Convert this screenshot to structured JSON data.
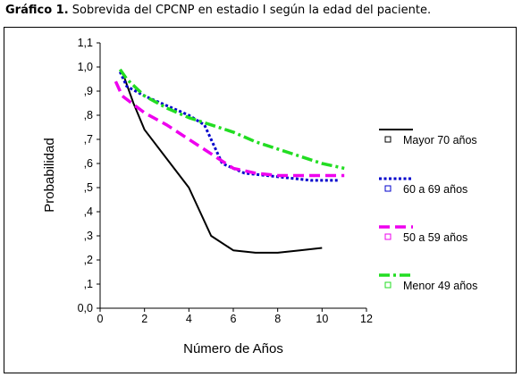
{
  "caption": {
    "label": "Gráfico 1.",
    "text": "Sobrevida del CPCNP en estadio I según la edad del paciente."
  },
  "chart_data": {
    "type": "line",
    "xlabel": "Número de Años",
    "ylabel": "Probabilidad",
    "xlim": [
      0,
      12
    ],
    "ylim": [
      0,
      1.1
    ],
    "xticks": [
      "0",
      "2",
      "4",
      "6",
      "8",
      "10",
      "12"
    ],
    "xtick_values": [
      0,
      2,
      4,
      6,
      8,
      10,
      12
    ],
    "yticks": [
      "0,0",
      ",1",
      ",2",
      ",3",
      ",4",
      ",5",
      ",6",
      ",7",
      ",8",
      ",9",
      "1,0",
      "1,1"
    ],
    "ytick_values": [
      0,
      0.1,
      0.2,
      0.3,
      0.4,
      0.5,
      0.6,
      0.7,
      0.8,
      0.9,
      1.0,
      1.1
    ],
    "grid": false,
    "legend": "right",
    "series": [
      {
        "name": "Mayor 70 años",
        "color": "#000000",
        "dash": "solid",
        "x": [
          1.0,
          1.5,
          2.0,
          3.0,
          4.0,
          5.0,
          6.0,
          7.0,
          8.0,
          9.0,
          10.0
        ],
        "y": [
          0.98,
          0.85,
          0.74,
          0.62,
          0.5,
          0.3,
          0.24,
          0.23,
          0.23,
          0.24,
          0.25
        ]
      },
      {
        "name": "60 a 69 años",
        "color": "#0000cc",
        "dash": "dotted",
        "x": [
          0.9,
          1.2,
          2.0,
          3.0,
          4.0,
          4.7,
          5.5,
          6.5,
          7.5,
          8.5,
          9.5,
          10.7
        ],
        "y": [
          0.98,
          0.92,
          0.88,
          0.84,
          0.8,
          0.76,
          0.6,
          0.56,
          0.55,
          0.54,
          0.53,
          0.53
        ]
      },
      {
        "name": "50 a 59 años",
        "color": "#ee00ee",
        "dash": "dashed",
        "x": [
          0.7,
          1.0,
          2.0,
          3.0,
          4.0,
          5.0,
          6.0,
          7.0,
          8.0,
          9.0,
          10.0,
          11.0
        ],
        "y": [
          0.94,
          0.88,
          0.81,
          0.76,
          0.7,
          0.64,
          0.58,
          0.56,
          0.55,
          0.55,
          0.55,
          0.55
        ]
      },
      {
        "name": "Menor 49 años",
        "color": "#22dd22",
        "dash": "dashdot",
        "x": [
          0.9,
          1.2,
          2.0,
          3.0,
          4.0,
          5.0,
          6.0,
          7.0,
          8.0,
          9.0,
          10.0,
          11.0
        ],
        "y": [
          0.99,
          0.95,
          0.88,
          0.83,
          0.79,
          0.76,
          0.73,
          0.69,
          0.66,
          0.63,
          0.6,
          0.58
        ]
      }
    ]
  }
}
